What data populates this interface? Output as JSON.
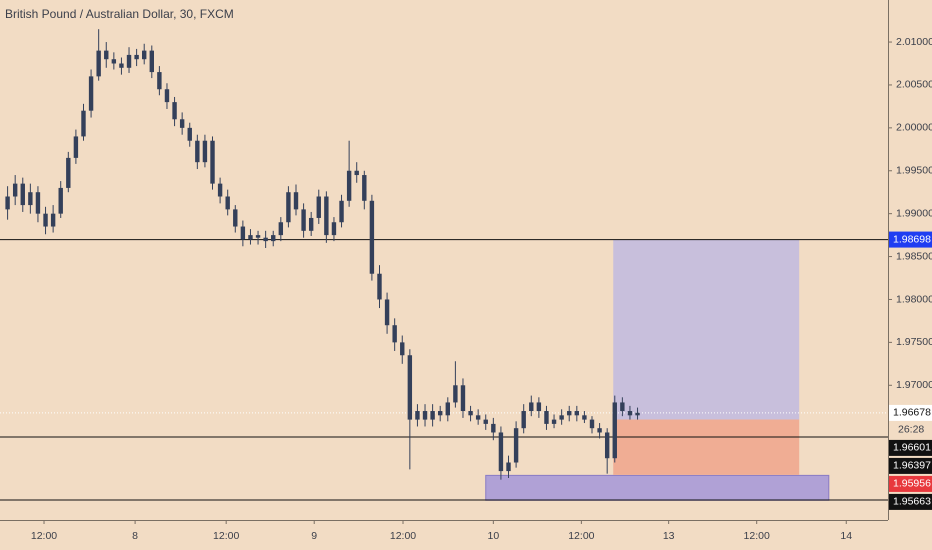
{
  "chart_data": {
    "type": "candlestick",
    "title": "British Pound / Australian Dollar, 30, FXCM",
    "color": "#34405a",
    "x": [
      1,
      2,
      3,
      4,
      5,
      6,
      7,
      8,
      9,
      10,
      11,
      12,
      13,
      14,
      15,
      16,
      17,
      18,
      19,
      20,
      21,
      22,
      23,
      24,
      25,
      26,
      27,
      28,
      29,
      30,
      31,
      32,
      33,
      34,
      35,
      36,
      37,
      38,
      39,
      40,
      41,
      42,
      43,
      44,
      45,
      46,
      47,
      48,
      49,
      50,
      51,
      52,
      53,
      54,
      55,
      56,
      57,
      58,
      59,
      60,
      61,
      62,
      63,
      64,
      65,
      66,
      67,
      68,
      69,
      70,
      71,
      72,
      73,
      74,
      75,
      76,
      77,
      78,
      79,
      80,
      81,
      82,
      83,
      84
    ],
    "open": [
      1.9905,
      1.992,
      1.9935,
      1.991,
      1.9925,
      1.99,
      1.9885,
      1.99,
      1.993,
      1.9965,
      1.999,
      2.002,
      2.006,
      2.009,
      2.008,
      2.0075,
      2.007,
      2.0085,
      2.008,
      2.009,
      2.0065,
      2.0045,
      2.003,
      2.001,
      2.0,
      1.9985,
      1.996,
      1.9985,
      1.9935,
      1.992,
      1.9905,
      1.9885,
      1.987,
      1.9875,
      1.9872,
      1.9868,
      1.9875,
      1.989,
      1.9925,
      1.9905,
      1.988,
      1.9895,
      1.992,
      1.9875,
      1.989,
      1.9915,
      1.995,
      1.9945,
      1.9915,
      1.983,
      1.98,
      1.977,
      1.975,
      1.9735,
      1.966,
      1.967,
      1.966,
      1.967,
      1.9665,
      1.968,
      1.97,
      1.967,
      1.9665,
      1.966,
      1.9655,
      1.9645,
      1.96,
      1.961,
      1.965,
      1.967,
      1.968,
      1.967,
      1.9655,
      1.966,
      1.9665,
      1.967,
      1.9665,
      1.966,
      1.965,
      1.9645,
      1.9615,
      1.968,
      1.967,
      1.9665
    ],
    "high": [
      1.9932,
      1.9945,
      1.9942,
      1.9935,
      1.9932,
      1.9908,
      1.991,
      1.9938,
      1.9972,
      1.9998,
      2.0028,
      2.0068,
      2.0115,
      2.01,
      2.0088,
      2.0082,
      2.0094,
      2.0092,
      2.0098,
      2.0096,
      2.0072,
      2.0052,
      2.0036,
      2.0018,
      2.0006,
      1.9992,
      1.9992,
      1.999,
      1.9942,
      1.9928,
      1.991,
      1.9892,
      1.9882,
      1.988,
      1.988,
      1.988,
      1.9896,
      1.9932,
      1.9934,
      1.9912,
      1.9902,
      1.9928,
      1.9926,
      1.9896,
      1.9922,
      1.9985,
      1.996,
      1.995,
      1.9922,
      1.984,
      1.9808,
      1.9778,
      1.9758,
      1.9742,
      1.9678,
      1.9678,
      1.9678,
      1.9676,
      1.9686,
      1.9728,
      1.9708,
      1.9676,
      1.9672,
      1.9666,
      1.9662,
      1.9652,
      1.9618,
      1.9658,
      1.9678,
      1.9688,
      1.9686,
      1.9676,
      1.9666,
      1.9672,
      1.9676,
      1.9676,
      1.967,
      1.9664,
      1.9656,
      1.965,
      1.9688,
      1.9686,
      1.9676,
      1.9674
    ],
    "low": [
      1.9893,
      1.991,
      1.9902,
      1.99,
      1.989,
      1.9876,
      1.9878,
      1.9895,
      1.9925,
      1.9958,
      1.9985,
      2.0012,
      2.0055,
      2.007,
      2.0068,
      2.0062,
      2.0064,
      2.0072,
      2.0074,
      2.0058,
      2.0038,
      2.0022,
      2.0002,
      1.9992,
      1.9978,
      1.9952,
      1.9954,
      1.9928,
      1.9912,
      1.9898,
      1.9878,
      1.9862,
      1.9864,
      1.9864,
      1.986,
      1.9862,
      1.9868,
      1.9884,
      1.9898,
      1.9872,
      1.9874,
      1.9888,
      1.9866,
      1.9868,
      1.9884,
      1.9908,
      1.9936,
      1.9905,
      1.9822,
      1.979,
      1.976,
      1.974,
      1.9725,
      1.9602,
      1.9652,
      1.9652,
      1.9652,
      1.9658,
      1.9658,
      1.9674,
      1.9662,
      1.9658,
      1.9654,
      1.9648,
      1.9636,
      1.959,
      1.9592,
      1.9604,
      1.9644,
      1.9664,
      1.9662,
      1.9648,
      1.965,
      1.9654,
      1.9658,
      1.9658,
      1.9656,
      1.9644,
      1.9638,
      1.9597,
      1.961,
      1.9664,
      1.966,
      1.966
    ],
    "close": [
      1.992,
      1.9935,
      1.991,
      1.9925,
      1.99,
      1.9885,
      1.99,
      1.993,
      1.9965,
      1.999,
      2.002,
      2.006,
      2.009,
      2.008,
      2.0075,
      2.007,
      2.0085,
      2.008,
      2.009,
      2.0065,
      2.0045,
      2.003,
      2.001,
      2.0,
      1.9985,
      1.996,
      1.9985,
      1.9935,
      1.992,
      1.9905,
      1.9885,
      1.987,
      1.9875,
      1.9872,
      1.9868,
      1.9875,
      1.989,
      1.9925,
      1.9905,
      1.988,
      1.9895,
      1.992,
      1.9875,
      1.989,
      1.9915,
      1.995,
      1.9945,
      1.9915,
      1.983,
      1.98,
      1.977,
      1.975,
      1.9735,
      1.966,
      1.967,
      1.966,
      1.967,
      1.9665,
      1.968,
      1.97,
      1.967,
      1.9665,
      1.966,
      1.9655,
      1.9645,
      1.96,
      1.961,
      1.965,
      1.967,
      1.968,
      1.967,
      1.9655,
      1.966,
      1.9665,
      1.967,
      1.9665,
      1.966,
      1.965,
      1.9645,
      1.9615,
      1.968,
      1.967,
      1.9665,
      1.9668
    ],
    "xlim": [
      0,
      117
    ],
    "xticks": [
      {
        "value": 5.8,
        "label": "12:00"
      },
      {
        "value": 17.8,
        "label": "8"
      },
      {
        "value": 29.8,
        "label": "12:00"
      },
      {
        "value": 41.4,
        "label": "9"
      },
      {
        "value": 53.1,
        "label": "12:00"
      },
      {
        "value": 65,
        "label": "10"
      },
      {
        "value": 76.6,
        "label": "12:00"
      },
      {
        "value": 88.1,
        "label": "13"
      },
      {
        "value": 99.7,
        "label": "12:00"
      },
      {
        "value": 111.5,
        "label": "14"
      }
    ],
    "ylim": [
      1.9543,
      2.0149
    ],
    "yticks": [
      {
        "value": 2.01,
        "label": "2.01000"
      },
      {
        "value": 2.005,
        "label": "2.00500"
      },
      {
        "value": 2.0,
        "label": "2.00000"
      },
      {
        "value": 1.995,
        "label": "1.99500"
      },
      {
        "value": 1.99,
        "label": "1.99000"
      },
      {
        "value": 1.985,
        "label": "1.98500"
      },
      {
        "value": 1.98,
        "label": "1.98000"
      },
      {
        "value": 1.975,
        "label": "1.97500"
      },
      {
        "value": 1.97,
        "label": "1.97000"
      }
    ],
    "levels": [
      {
        "value": 1.98698,
        "color": "#1f3df2"
      },
      {
        "value": 1.96397,
        "color": "#111111"
      },
      {
        "value": 1.95663,
        "color": "#111111"
      }
    ],
    "zone": {
      "low": 1.9566,
      "high": 1.9595,
      "x_start": 64,
      "x_end": 109.2,
      "color": "#a99ad8"
    },
    "position": {
      "target": 1.98698,
      "entry": 1.96601,
      "stop": 1.95956,
      "x_start": 80.8,
      "x_end": 105.3,
      "target_color": "#c8bfdc",
      "stop_color": "#f0ad94",
      "stop_label_color": "#e8383d"
    },
    "last_price": 1.96678,
    "countdown": "26:28"
  }
}
